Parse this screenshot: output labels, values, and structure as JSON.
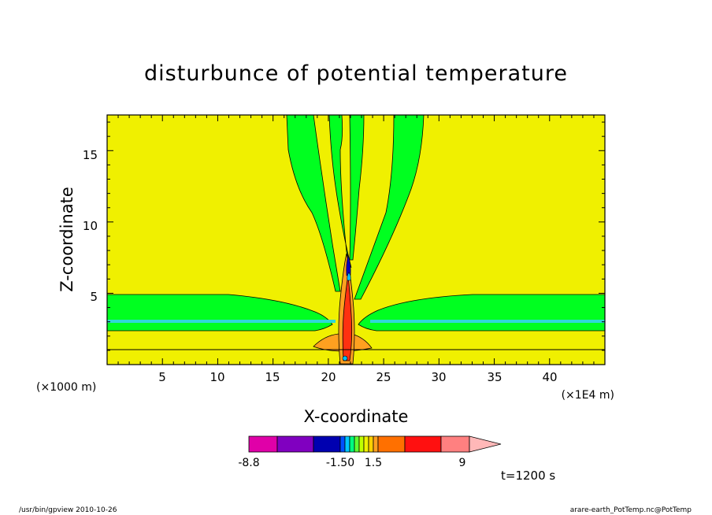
{
  "chart_data": {
    "type": "heatmap",
    "title": "disturbunce of potential temperature",
    "xlabel": "X-coordinate",
    "ylabel": "Z-coordinate",
    "x_unit_note": "(×1000 m)",
    "x_scale_note": "(×1E4 m)",
    "xlim": [
      0,
      45
    ],
    "ylim": [
      0,
      17.5
    ],
    "x_ticks": [
      "5",
      "10",
      "15",
      "20",
      "25",
      "30",
      "35",
      "40"
    ],
    "y_ticks": [
      "5",
      "10",
      "15"
    ],
    "colorbar": {
      "labels": [
        "-8.8",
        "-1.50",
        "1.5",
        "9"
      ],
      "colors": [
        "#e000a8",
        "#8000c0",
        "#0000b0",
        "#0050ff",
        "#00c8ff",
        "#00ff80",
        "#60ff30",
        "#c0ff00",
        "#f0f000",
        "#ffd000",
        "#ffa020",
        "#ff7000",
        "#ff1010",
        "#ff8080",
        "#ffb8b8"
      ]
    },
    "time_label": "t=1200 s",
    "regions": {
      "background_color": "#f0f000",
      "band_color": "#00ff20",
      "plume_colors": [
        "#ff9000",
        "#ff3010",
        "#0000c0",
        "#00c0ff"
      ]
    }
  },
  "footer": {
    "left": "/usr/bin/gpview   2010-10-26",
    "right": "arare-earth_PotTemp.nc@PotTemp"
  }
}
